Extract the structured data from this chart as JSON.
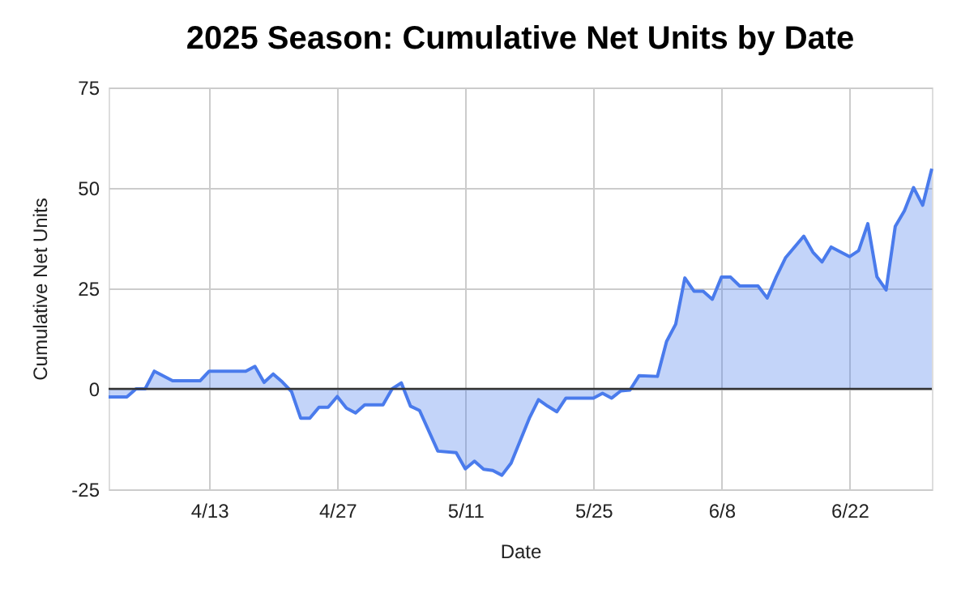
{
  "chart_data": {
    "type": "area",
    "title": "2025 Season: Cumulative Net Units by Date",
    "xlabel": "Date",
    "ylabel": "Cumulative Net Units",
    "x": [
      "2025-04-02",
      "2025-04-04",
      "2025-04-05",
      "2025-04-06",
      "2025-04-07",
      "2025-04-09",
      "2025-04-12",
      "2025-04-13",
      "2025-04-17",
      "2025-04-18",
      "2025-04-19",
      "2025-04-20",
      "2025-04-21",
      "2025-04-22",
      "2025-04-23",
      "2025-04-24",
      "2025-04-25",
      "2025-04-26",
      "2025-04-27",
      "2025-04-28",
      "2025-04-29",
      "2025-04-30",
      "2025-05-02",
      "2025-05-03",
      "2025-05-04",
      "2025-05-05",
      "2025-05-06",
      "2025-05-08",
      "2025-05-10",
      "2025-05-11",
      "2025-05-12",
      "2025-05-13",
      "2025-05-14",
      "2025-05-15",
      "2025-05-16",
      "2025-05-18",
      "2025-05-19",
      "2025-05-20",
      "2025-05-21",
      "2025-05-22",
      "2025-05-25",
      "2025-05-26",
      "2025-05-27",
      "2025-05-28",
      "2025-05-29",
      "2025-05-30",
      "2025-06-01",
      "2025-06-02",
      "2025-06-03",
      "2025-06-04",
      "2025-06-05",
      "2025-06-06",
      "2025-06-07",
      "2025-06-08",
      "2025-06-09",
      "2025-06-10",
      "2025-06-12",
      "2025-06-13",
      "2025-06-14",
      "2025-06-15",
      "2025-06-17",
      "2025-06-18",
      "2025-06-19",
      "2025-06-20",
      "2025-06-22",
      "2025-06-23",
      "2025-06-24",
      "2025-06-25",
      "2025-06-26",
      "2025-06-27",
      "2025-06-28",
      "2025-06-29",
      "2025-06-30",
      "2025-07-01"
    ],
    "series": [
      {
        "color": "#4a7bec",
        "values": [
          -2,
          -2,
          0,
          0,
          4.4,
          2,
          2,
          4.4,
          4.4,
          5.6,
          1.6,
          3.7,
          1.7,
          -0.7,
          -7.3,
          -7.3,
          -4.6,
          -4.6,
          -1.9,
          -4.8,
          -6,
          -4,
          -4,
          0,
          1.5,
          -4.3,
          -5.4,
          -15.5,
          -15.9,
          -19.9,
          -18,
          -20,
          -20.3,
          -21.5,
          -18.5,
          -7.3,
          -2.7,
          -4.3,
          -5.7,
          -2.3,
          -2.3,
          -1.1,
          -2.3,
          -0.5,
          -0.3,
          3.3,
          3.1,
          11.8,
          16.1,
          27.6,
          24.3,
          24.3,
          22.3,
          27.8,
          27.8,
          25.6,
          25.6,
          22.6,
          27.9,
          32.6,
          38,
          34,
          31.6,
          35.3,
          32.9,
          34.4,
          41.1,
          27.9,
          24.6,
          40.4,
          44.3,
          50.1,
          45.7,
          54.8
        ]
      }
    ],
    "xlim": [
      "2025-04-02",
      "2025-07-01"
    ],
    "xticks": [
      {
        "value": "2025-04-13",
        "label": "4/13"
      },
      {
        "value": "2025-04-27",
        "label": "4/27"
      },
      {
        "value": "2025-05-11",
        "label": "5/11"
      },
      {
        "value": "2025-05-25",
        "label": "5/25"
      },
      {
        "value": "2025-06-08",
        "label": "6/8"
      },
      {
        "value": "2025-06-22",
        "label": "6/22"
      }
    ],
    "ylim": [
      -25,
      75
    ],
    "yticks": [
      -25,
      0,
      25,
      50,
      75
    ],
    "ref_lines": [
      {
        "axis": "y",
        "value": 0,
        "color": "#333333"
      }
    ],
    "grid": true,
    "marker": "none",
    "line_style": "solid"
  }
}
